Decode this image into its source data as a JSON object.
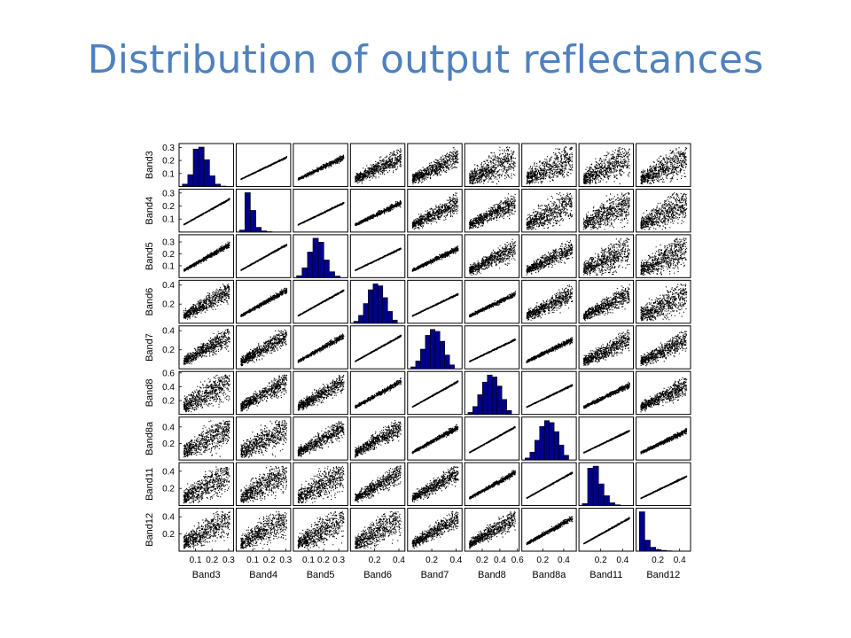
{
  "slide": {
    "title": "Distribution of output reflectances"
  },
  "chart_data": {
    "type": "scatter",
    "subtype": "scatter-plot-matrix",
    "variables": [
      "Band3",
      "Band4",
      "Band5",
      "Band6",
      "Band7",
      "Band8",
      "Band8a",
      "Band11",
      "Band12"
    ],
    "diagonal": "histogram",
    "histogram_color": "#00008b",
    "point_color": "#000000",
    "ranges": {
      "Band3": [
        0.0,
        0.33
      ],
      "Band4": [
        0.0,
        0.33
      ],
      "Band5": [
        0.0,
        0.36
      ],
      "Band6": [
        0.0,
        0.45
      ],
      "Band7": [
        0.0,
        0.45
      ],
      "Band8": [
        0.0,
        0.62
      ],
      "Band8a": [
        0.0,
        0.52
      ],
      "Band11": [
        0.0,
        0.5
      ],
      "Band12": [
        0.0,
        0.5
      ]
    },
    "y_ticks": {
      "Band3": [
        "0.1",
        "0.2",
        "0.3"
      ],
      "Band4": [
        "0.1",
        "0.2",
        "0.3"
      ],
      "Band5": [
        "0.1",
        "0.2",
        "0.3"
      ],
      "Band6": [
        "0.2",
        "0.4"
      ],
      "Band7": [
        "0.2",
        "0.4"
      ],
      "Band8": [
        "0.2",
        "0.4",
        "0.6"
      ],
      "Band8a": [
        "0.2",
        "0.4"
      ],
      "Band11": [
        "0.2",
        "0.4"
      ],
      "Band12": [
        "0.2",
        "0.4"
      ]
    },
    "x_tick_labels": {
      "Band3": [
        "0.1",
        "0.2",
        "0.3"
      ],
      "Band4": [
        "0.1",
        "0.2",
        "0.3"
      ],
      "Band5": [
        "0.1",
        "0.2",
        "0.3"
      ],
      "Band6": [
        "0.2",
        "0.4"
      ],
      "Band7": [
        "0.2",
        "0.4"
      ],
      "Band8": [
        "0.2",
        "0.4",
        "0.6"
      ],
      "Band8a": [
        "0.2",
        "0.4"
      ],
      "Band11": [
        "0.2",
        "0.4"
      ],
      "Band12": [
        "0.2",
        "0.4"
      ]
    },
    "histograms": {
      "Band3": [
        0.06,
        0.3,
        0.95,
        1.0,
        0.68,
        0.27,
        0.06,
        0.01
      ],
      "Band4": [
        0.05,
        1.0,
        0.55,
        0.12,
        0.03,
        0.01,
        0.005
      ],
      "Band5": [
        0.05,
        0.25,
        0.65,
        1.0,
        0.9,
        0.45,
        0.15,
        0.04
      ],
      "Band6": [
        0.05,
        0.2,
        0.5,
        0.85,
        1.0,
        0.95,
        0.65,
        0.3,
        0.08
      ],
      "Band7": [
        0.05,
        0.2,
        0.5,
        0.85,
        1.0,
        0.95,
        0.7,
        0.35,
        0.1
      ],
      "Band8": [
        0.05,
        0.2,
        0.5,
        0.82,
        1.0,
        0.95,
        0.72,
        0.38,
        0.1
      ],
      "Band8a": [
        0.05,
        0.2,
        0.5,
        0.85,
        1.0,
        0.95,
        0.72,
        0.38,
        0.12
      ],
      "Band11": [
        0.05,
        0.95,
        1.0,
        0.55,
        0.25,
        0.07,
        0.02
      ],
      "Band12": [
        1.0,
        0.28,
        0.1,
        0.04,
        0.02,
        0.01,
        0.005
      ]
    }
  }
}
